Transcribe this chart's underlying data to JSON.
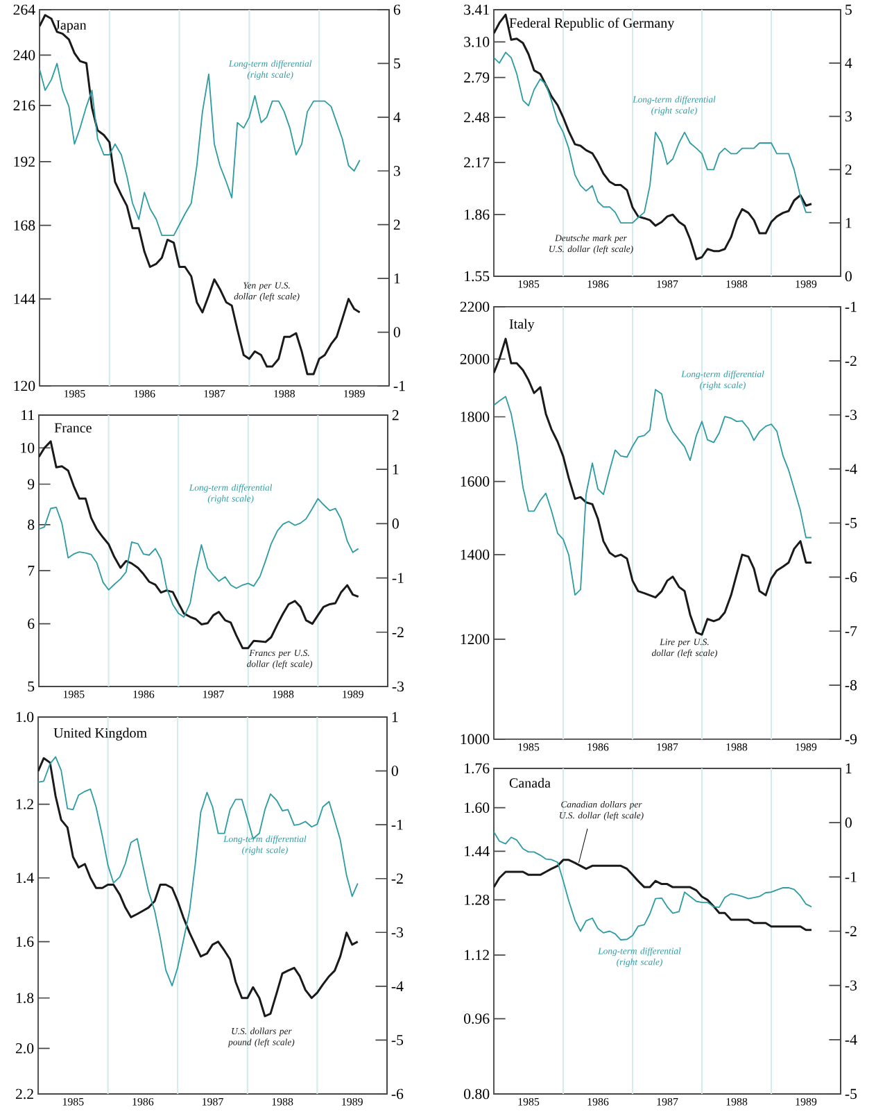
{
  "chart_data": [
    {
      "type": "line",
      "title": "Japan",
      "log": "y",
      "x": [
        "1985-01",
        "1985-02",
        "1985-03",
        "1985-04",
        "1985-05",
        "1985-06",
        "1985-07",
        "1985-08",
        "1985-09",
        "1985-10",
        "1985-11",
        "1985-12",
        "1986-01",
        "1986-02",
        "1986-03",
        "1986-04",
        "1986-05",
        "1986-06",
        "1986-07",
        "1986-08",
        "1986-09",
        "1986-10",
        "1986-11",
        "1986-12",
        "1987-01",
        "1987-02",
        "1987-03",
        "1987-04",
        "1987-05",
        "1987-06",
        "1987-07",
        "1987-08",
        "1987-09",
        "1987-10",
        "1987-11",
        "1987-12",
        "1988-01",
        "1988-02",
        "1988-03",
        "1988-04",
        "1988-05",
        "1988-06",
        "1988-07",
        "1988-08",
        "1988-09",
        "1988-10",
        "1988-11",
        "1988-12",
        "1989-01",
        "1989-02",
        "1989-03",
        "1989-04",
        "1989-05",
        "1989-06",
        "1989-07",
        "1989-08"
      ],
      "xlim": [
        "1985-01",
        "1990-01"
      ],
      "xticks": [
        {
          "value": "1985-07",
          "label": "1985"
        },
        {
          "value": "1986-07",
          "label": "1986"
        },
        {
          "value": "1987-07",
          "label": "1987"
        },
        {
          "value": "1988-07",
          "label": "1988"
        },
        {
          "value": "1989-07",
          "label": "1989"
        }
      ],
      "ylim": [
        120,
        264
      ],
      "yticks": [
        120,
        144,
        168,
        192,
        216,
        240,
        264
      ],
      "y2lim": [
        -1,
        6
      ],
      "y2ticks": [
        -1,
        0,
        1,
        2,
        3,
        4,
        5,
        6
      ],
      "ref_lines": [
        {
          "axis": "x",
          "value": "1986-01",
          "color": "#d3ebec"
        },
        {
          "axis": "x",
          "value": "1987-01",
          "color": "#d3ebec"
        },
        {
          "axis": "x",
          "value": "1988-01",
          "color": "#d3ebec"
        },
        {
          "axis": "x",
          "value": "1989-01",
          "color": "#d3ebec"
        }
      ],
      "series": [
        {
          "name": "Yen per U.S. dollar (left scale)",
          "color": "#1a1a1a",
          "values": [
            255,
            261,
            259,
            252,
            251,
            248,
            241,
            237,
            236,
            215,
            205,
            203,
            200,
            184,
            179,
            175,
            167,
            167,
            159,
            154,
            155,
            157,
            163,
            162,
            154,
            154,
            151,
            143,
            140,
            145,
            150,
            147,
            143,
            142,
            135,
            128,
            127,
            129,
            128,
            125,
            125,
            127,
            133,
            133,
            134,
            129,
            123,
            123,
            127,
            128,
            131,
            133,
            138,
            144,
            141,
            140
          ]
        },
        {
          "name": "Long-term differential (right scale)",
          "color": "#2e9ca3",
          "axis": "y2",
          "values": [
            4.9,
            4.5,
            4.7,
            5.0,
            4.5,
            4.2,
            3.5,
            3.8,
            4.2,
            4.5,
            3.6,
            3.3,
            3.3,
            3.5,
            3.3,
            2.9,
            2.4,
            2.1,
            2.6,
            2.3,
            2.1,
            1.8,
            1.8,
            1.8,
            2.0,
            2.2,
            2.4,
            3.1,
            4.1,
            4.8,
            3.5,
            3.1,
            2.8,
            2.5,
            3.9,
            3.8,
            4.0,
            4.4,
            3.9,
            4.0,
            4.3,
            4.3,
            4.1,
            3.8,
            3.3,
            3.5,
            4.1,
            4.3,
            4.3,
            4.3,
            4.2,
            3.9,
            3.6,
            3.1,
            3.0,
            3.2
          ]
        }
      ]
    },
    {
      "type": "line",
      "title": "Federal Republic of Germany",
      "log": "y",
      "x": [
        "1985-01",
        "1985-02",
        "1985-03",
        "1985-04",
        "1985-05",
        "1985-06",
        "1985-07",
        "1985-08",
        "1985-09",
        "1985-10",
        "1985-11",
        "1985-12",
        "1986-01",
        "1986-02",
        "1986-03",
        "1986-04",
        "1986-05",
        "1986-06",
        "1986-07",
        "1986-08",
        "1986-09",
        "1986-10",
        "1986-11",
        "1986-12",
        "1987-01",
        "1987-02",
        "1987-03",
        "1987-04",
        "1987-05",
        "1987-06",
        "1987-07",
        "1987-08",
        "1987-09",
        "1987-10",
        "1987-11",
        "1987-12",
        "1988-01",
        "1988-02",
        "1988-03",
        "1988-04",
        "1988-05",
        "1988-06",
        "1988-07",
        "1988-08",
        "1988-09",
        "1988-10",
        "1988-11",
        "1988-12",
        "1989-01",
        "1989-02",
        "1989-03",
        "1989-04",
        "1989-05",
        "1989-06",
        "1989-07",
        "1989-08"
      ],
      "xlim": [
        "1985-01",
        "1990-01"
      ],
      "xticks": [
        {
          "value": "1985-07",
          "label": "1985"
        },
        {
          "value": "1986-07",
          "label": "1986"
        },
        {
          "value": "1987-07",
          "label": "1987"
        },
        {
          "value": "1988-07",
          "label": "1988"
        },
        {
          "value": "1989-07",
          "label": "1989"
        }
      ],
      "ylim": [
        1.55,
        3.41
      ],
      "yticks": [
        1.55,
        1.86,
        2.17,
        2.48,
        2.79,
        {
          "value": 3.1,
          "label": "3.10"
        },
        3.41
      ],
      "y2lim": [
        0,
        5
      ],
      "y2ticks": [
        0,
        1,
        2,
        3,
        4,
        5
      ],
      "ref_lines": [
        {
          "axis": "x",
          "value": "1986-01",
          "color": "#d3ebec"
        },
        {
          "axis": "x",
          "value": "1987-01",
          "color": "#d3ebec"
        },
        {
          "axis": "x",
          "value": "1988-01",
          "color": "#d3ebec"
        },
        {
          "axis": "x",
          "value": "1989-01",
          "color": "#d3ebec"
        }
      ],
      "series": [
        {
          "name": "Deutsche mark per U.S. dollar (left scale)",
          "color": "#1a1a1a",
          "values": [
            3.18,
            3.28,
            3.36,
            3.12,
            3.13,
            3.09,
            2.99,
            2.85,
            2.82,
            2.73,
            2.64,
            2.57,
            2.48,
            2.38,
            2.29,
            2.28,
            2.25,
            2.23,
            2.17,
            2.1,
            2.05,
            2.03,
            2.03,
            2.0,
            1.9,
            1.85,
            1.84,
            1.83,
            1.8,
            1.82,
            1.85,
            1.86,
            1.82,
            1.8,
            1.73,
            1.63,
            1.64,
            1.68,
            1.67,
            1.67,
            1.68,
            1.74,
            1.83,
            1.89,
            1.87,
            1.83,
            1.76,
            1.76,
            1.82,
            1.85,
            1.87,
            1.88,
            1.94,
            1.97,
            1.91,
            1.92
          ]
        },
        {
          "name": "Long-term differential (right scale)",
          "color": "#2e9ca3",
          "axis": "y2",
          "values": [
            4.1,
            4.0,
            4.2,
            4.1,
            3.8,
            3.3,
            3.2,
            3.5,
            3.7,
            3.6,
            3.3,
            2.9,
            2.7,
            2.4,
            1.9,
            1.7,
            1.6,
            1.7,
            1.4,
            1.3,
            1.3,
            1.2,
            1.0,
            1.0,
            1.0,
            1.1,
            1.2,
            1.7,
            2.7,
            2.5,
            2.1,
            2.2,
            2.5,
            2.7,
            2.5,
            2.4,
            2.3,
            2.0,
            2.0,
            2.3,
            2.4,
            2.3,
            2.3,
            2.4,
            2.4,
            2.4,
            2.5,
            2.5,
            2.5,
            2.3,
            2.3,
            2.3,
            2.0,
            1.5,
            1.2,
            1.2
          ]
        }
      ]
    },
    {
      "type": "line",
      "title": "France",
      "log": "y",
      "x": [
        "1985-01",
        "1985-02",
        "1985-03",
        "1985-04",
        "1985-05",
        "1985-06",
        "1985-07",
        "1985-08",
        "1985-09",
        "1985-10",
        "1985-11",
        "1985-12",
        "1986-01",
        "1986-02",
        "1986-03",
        "1986-04",
        "1986-05",
        "1986-06",
        "1986-07",
        "1986-08",
        "1986-09",
        "1986-10",
        "1986-11",
        "1986-12",
        "1987-01",
        "1987-02",
        "1987-03",
        "1987-04",
        "1987-05",
        "1987-06",
        "1987-07",
        "1987-08",
        "1987-09",
        "1987-10",
        "1987-11",
        "1987-12",
        "1988-01",
        "1988-02",
        "1988-03",
        "1988-04",
        "1988-05",
        "1988-06",
        "1988-07",
        "1988-08",
        "1988-09",
        "1988-10",
        "1988-11",
        "1988-12",
        "1989-01",
        "1989-02",
        "1989-03",
        "1989-04",
        "1989-05",
        "1989-06",
        "1989-07",
        "1989-08"
      ],
      "xlim": [
        "1985-01",
        "1990-01"
      ],
      "xticks": [
        {
          "value": "1985-07",
          "label": "1985"
        },
        {
          "value": "1986-07",
          "label": "1986"
        },
        {
          "value": "1987-07",
          "label": "1987"
        },
        {
          "value": "1988-07",
          "label": "1988"
        },
        {
          "value": "1989-07",
          "label": "1989"
        }
      ],
      "ylim": [
        5,
        11
      ],
      "yticks": [
        5,
        6,
        7,
        8,
        9,
        10,
        11
      ],
      "y2lim": [
        -3,
        2
      ],
      "y2ticks": [
        -3,
        -2,
        -1,
        0,
        1,
        2
      ],
      "ref_lines": [
        {
          "axis": "x",
          "value": "1986-01",
          "color": "#d3ebec"
        },
        {
          "axis": "x",
          "value": "1987-01",
          "color": "#d3ebec"
        },
        {
          "axis": "x",
          "value": "1988-01",
          "color": "#d3ebec"
        },
        {
          "axis": "x",
          "value": "1989-01",
          "color": "#d3ebec"
        }
      ],
      "series": [
        {
          "name": "Francs per U.S. dollar (left scale)",
          "color": "#1a1a1a",
          "values": [
            9.74,
            10.0,
            10.19,
            9.45,
            9.48,
            9.36,
            8.95,
            8.63,
            8.63,
            8.16,
            7.9,
            7.71,
            7.56,
            7.29,
            7.06,
            7.2,
            7.15,
            7.06,
            6.93,
            6.78,
            6.72,
            6.57,
            6.61,
            6.58,
            6.37,
            6.18,
            6.12,
            6.08,
            5.99,
            6.01,
            6.15,
            6.21,
            6.06,
            6.02,
            5.8,
            5.59,
            5.59,
            5.71,
            5.7,
            5.69,
            5.77,
            5.99,
            6.18,
            6.35,
            6.41,
            6.3,
            6.06,
            6.0,
            6.15,
            6.3,
            6.35,
            6.37,
            6.57,
            6.71,
            6.53,
            6.49
          ]
        },
        {
          "name": "Long-term differential (right scale)",
          "color": "#2e9ca3",
          "axis": "y2",
          "values": [
            -0.1,
            -0.06,
            0.28,
            0.3,
            0.01,
            -0.63,
            -0.56,
            -0.52,
            -0.54,
            -0.57,
            -0.72,
            -1.08,
            -1.22,
            -1.12,
            -1.02,
            -0.89,
            -0.34,
            -0.37,
            -0.56,
            -0.58,
            -0.46,
            -0.65,
            -1.18,
            -1.49,
            -1.65,
            -1.72,
            -1.46,
            -0.87,
            -0.39,
            -0.82,
            -0.95,
            -1.06,
            -0.98,
            -1.13,
            -1.19,
            -1.13,
            -1.1,
            -1.15,
            -0.97,
            -0.68,
            -0.37,
            -0.13,
            -0.01,
            0.04,
            -0.03,
            0.01,
            0.09,
            0.28,
            0.46,
            0.35,
            0.24,
            0.28,
            0.09,
            -0.32,
            -0.53,
            -0.46
          ]
        }
      ]
    },
    {
      "type": "line",
      "title": "Italy",
      "log": "y",
      "x": [
        "1985-01",
        "1985-02",
        "1985-03",
        "1985-04",
        "1985-05",
        "1985-06",
        "1985-07",
        "1985-08",
        "1985-09",
        "1985-10",
        "1985-11",
        "1985-12",
        "1986-01",
        "1986-02",
        "1986-03",
        "1986-04",
        "1986-05",
        "1986-06",
        "1986-07",
        "1986-08",
        "1986-09",
        "1986-10",
        "1986-11",
        "1986-12",
        "1987-01",
        "1987-02",
        "1987-03",
        "1987-04",
        "1987-05",
        "1987-06",
        "1987-07",
        "1987-08",
        "1987-09",
        "1987-10",
        "1987-11",
        "1987-12",
        "1988-01",
        "1988-02",
        "1988-03",
        "1988-04",
        "1988-05",
        "1988-06",
        "1988-07",
        "1988-08",
        "1988-09",
        "1988-10",
        "1988-11",
        "1988-12",
        "1989-01",
        "1989-02",
        "1989-03",
        "1989-04",
        "1989-05",
        "1989-06",
        "1989-07",
        "1989-08"
      ],
      "xlim": [
        "1985-01",
        "1990-01"
      ],
      "xticks": [
        {
          "value": "1985-07",
          "label": "1985"
        },
        {
          "value": "1986-07",
          "label": "1986"
        },
        {
          "value": "1987-07",
          "label": "1987"
        },
        {
          "value": "1988-07",
          "label": "1988"
        },
        {
          "value": "1989-07",
          "label": "1989"
        }
      ],
      "ylim": [
        1000,
        2200
      ],
      "yticks": [
        1000,
        1200,
        1400,
        1600,
        1800,
        2000,
        2200
      ],
      "y2lim": [
        -9,
        -1
      ],
      "y2ticks": [
        -9,
        -8,
        -7,
        -6,
        -5,
        -4,
        -3,
        -2,
        -1
      ],
      "ref_lines": [
        {
          "axis": "x",
          "value": "1986-01",
          "color": "#d3ebec"
        },
        {
          "axis": "x",
          "value": "1987-01",
          "color": "#d3ebec"
        },
        {
          "axis": "x",
          "value": "1988-01",
          "color": "#d3ebec"
        },
        {
          "axis": "x",
          "value": "1989-01",
          "color": "#d3ebec"
        }
      ],
      "series": [
        {
          "name": "Lire per U.S. dollar (left scale)",
          "color": "#1a1a1a",
          "values": [
            1950,
            2000,
            2075,
            1985,
            1985,
            1960,
            1925,
            1880,
            1900,
            1810,
            1760,
            1720,
            1675,
            1610,
            1550,
            1555,
            1540,
            1535,
            1495,
            1435,
            1405,
            1395,
            1400,
            1390,
            1335,
            1310,
            1305,
            1300,
            1295,
            1310,
            1335,
            1345,
            1320,
            1310,
            1255,
            1215,
            1210,
            1245,
            1240,
            1245,
            1260,
            1300,
            1350,
            1400,
            1395,
            1365,
            1310,
            1300,
            1340,
            1360,
            1370,
            1380,
            1415,
            1435,
            1380,
            1380
          ]
        },
        {
          "name": "Long-term differential (right scale)",
          "color": "#2e9ca3",
          "axis": "y2",
          "values": [
            -2.82,
            -2.74,
            -2.66,
            -2.98,
            -3.52,
            -4.34,
            -4.78,
            -4.78,
            -4.58,
            -4.45,
            -4.77,
            -5.19,
            -5.3,
            -5.59,
            -6.33,
            -6.23,
            -4.47,
            -3.89,
            -4.37,
            -4.47,
            -4.02,
            -3.65,
            -3.76,
            -3.78,
            -3.58,
            -3.41,
            -3.38,
            -3.28,
            -2.53,
            -2.61,
            -3.09,
            -3.31,
            -3.46,
            -3.59,
            -3.84,
            -3.38,
            -3.12,
            -3.46,
            -3.51,
            -3.33,
            -3.03,
            -3.06,
            -3.12,
            -3.11,
            -3.25,
            -3.47,
            -3.31,
            -3.21,
            -3.17,
            -3.3,
            -3.76,
            -4.02,
            -4.37,
            -4.77,
            -5.27,
            -5.27
          ]
        }
      ]
    },
    {
      "type": "line",
      "title": "United Kingdom",
      "log": "y",
      "x": [
        "1985-01",
        "1985-02",
        "1985-03",
        "1985-04",
        "1985-05",
        "1985-06",
        "1985-07",
        "1985-08",
        "1985-09",
        "1985-10",
        "1985-11",
        "1985-12",
        "1986-01",
        "1986-02",
        "1986-03",
        "1986-04",
        "1986-05",
        "1986-06",
        "1986-07",
        "1986-08",
        "1986-09",
        "1986-10",
        "1986-11",
        "1986-12",
        "1987-01",
        "1987-02",
        "1987-03",
        "1987-04",
        "1987-05",
        "1987-06",
        "1987-07",
        "1987-08",
        "1987-09",
        "1987-10",
        "1987-11",
        "1987-12",
        "1988-01",
        "1988-02",
        "1988-03",
        "1988-04",
        "1988-05",
        "1988-06",
        "1988-07",
        "1988-08",
        "1988-09",
        "1988-10",
        "1988-11",
        "1988-12",
        "1989-01",
        "1989-02",
        "1989-03",
        "1989-04",
        "1989-05",
        "1989-06",
        "1989-07",
        "1989-08"
      ],
      "xlim": [
        "1985-01",
        "1990-01"
      ],
      "xticks": [
        {
          "value": "1985-07",
          "label": "1985"
        },
        {
          "value": "1986-07",
          "label": "1986"
        },
        {
          "value": "1987-07",
          "label": "1987"
        },
        {
          "value": "1988-07",
          "label": "1988"
        },
        {
          "value": "1989-07",
          "label": "1989"
        }
      ],
      "ylim": [
        2.2,
        1.0
      ],
      "yticks": [
        {
          "value": 1.0,
          "label": "1.0"
        },
        1.2,
        1.4,
        1.6,
        1.8,
        {
          "value": 2.0,
          "label": "2.0"
        },
        2.2
      ],
      "y2lim": [
        -6,
        1
      ],
      "y2ticks": [
        -6,
        -5,
        -4,
        -3,
        -2,
        -1,
        0,
        1
      ],
      "ref_lines": [
        {
          "axis": "x",
          "value": "1986-01",
          "color": "#d3ebec"
        },
        {
          "axis": "x",
          "value": "1987-01",
          "color": "#d3ebec"
        },
        {
          "axis": "x",
          "value": "1988-01",
          "color": "#d3ebec"
        },
        {
          "axis": "x",
          "value": "1989-01",
          "color": "#d3ebec"
        }
      ],
      "series": [
        {
          "name": "U.S. dollars per pound (left scale)",
          "color": "#1a1a1a",
          "values": [
            1.12,
            1.09,
            1.1,
            1.18,
            1.24,
            1.26,
            1.34,
            1.37,
            1.36,
            1.4,
            1.43,
            1.43,
            1.42,
            1.42,
            1.45,
            1.49,
            1.52,
            1.51,
            1.5,
            1.49,
            1.47,
            1.42,
            1.42,
            1.43,
            1.47,
            1.52,
            1.57,
            1.61,
            1.65,
            1.64,
            1.61,
            1.6,
            1.63,
            1.66,
            1.74,
            1.8,
            1.8,
            1.76,
            1.8,
            1.87,
            1.86,
            1.78,
            1.71,
            1.7,
            1.69,
            1.72,
            1.77,
            1.8,
            1.78,
            1.75,
            1.72,
            1.7,
            1.65,
            1.57,
            1.61,
            1.6
          ]
        },
        {
          "name": "Long-term differential (right scale)",
          "color": "#2e9ca3",
          "axis": "y2",
          "values": [
            -0.21,
            -0.19,
            0.13,
            0.26,
            0.01,
            -0.7,
            -0.72,
            -0.45,
            -0.38,
            -0.34,
            -0.67,
            -1.21,
            -1.75,
            -2.08,
            -1.97,
            -1.72,
            -1.33,
            -1.26,
            -1.75,
            -2.23,
            -2.6,
            -3.11,
            -3.7,
            -3.99,
            -3.65,
            -3.16,
            -2.6,
            -1.75,
            -0.77,
            -0.4,
            -0.67,
            -1.16,
            -1.16,
            -0.72,
            -0.53,
            -0.53,
            -0.89,
            -1.26,
            -1.16,
            -0.72,
            -0.43,
            -0.55,
            -0.74,
            -0.72,
            -1.01,
            -0.99,
            -0.94,
            -1.04,
            -0.99,
            -0.67,
            -0.57,
            -0.92,
            -1.28,
            -1.94,
            -2.33,
            -2.09
          ]
        }
      ]
    },
    {
      "type": "line",
      "title": "Canada",
      "log": "y",
      "x": [
        "1985-01",
        "1985-02",
        "1985-03",
        "1985-04",
        "1985-05",
        "1985-06",
        "1985-07",
        "1985-08",
        "1985-09",
        "1985-10",
        "1985-11",
        "1985-12",
        "1986-01",
        "1986-02",
        "1986-03",
        "1986-04",
        "1986-05",
        "1986-06",
        "1986-07",
        "1986-08",
        "1986-09",
        "1986-10",
        "1986-11",
        "1986-12",
        "1987-01",
        "1987-02",
        "1987-03",
        "1987-04",
        "1987-05",
        "1987-06",
        "1987-07",
        "1987-08",
        "1987-09",
        "1987-10",
        "1987-11",
        "1987-12",
        "1988-01",
        "1988-02",
        "1988-03",
        "1988-04",
        "1988-05",
        "1988-06",
        "1988-07",
        "1988-08",
        "1988-09",
        "1988-10",
        "1988-11",
        "1988-12",
        "1989-01",
        "1989-02",
        "1989-03",
        "1989-04",
        "1989-05",
        "1989-06",
        "1989-07",
        "1989-08"
      ],
      "xlim": [
        "1985-01",
        "1990-01"
      ],
      "xticks": [
        {
          "value": "1985-07",
          "label": "1985"
        },
        {
          "value": "1986-07",
          "label": "1986"
        },
        {
          "value": "1987-07",
          "label": "1987"
        },
        {
          "value": "1988-07",
          "label": "1988"
        },
        {
          "value": "1989-07",
          "label": "1989"
        }
      ],
      "ylim": [
        0.8,
        1.76
      ],
      "yticks": [
        {
          "value": 0.8,
          "label": "0.80"
        },
        0.96,
        1.12,
        1.28,
        1.44,
        {
          "value": 1.6,
          "label": "1.60"
        },
        1.76
      ],
      "y2lim": [
        -5,
        1
      ],
      "y2ticks": [
        -5,
        -4,
        -3,
        -2,
        -1,
        0,
        1
      ],
      "ref_lines": [
        {
          "axis": "x",
          "value": "1986-01",
          "color": "#d3ebec"
        },
        {
          "axis": "x",
          "value": "1987-01",
          "color": "#d3ebec"
        },
        {
          "axis": "x",
          "value": "1988-01",
          "color": "#d3ebec"
        },
        {
          "axis": "x",
          "value": "1989-01",
          "color": "#d3ebec"
        }
      ],
      "series": [
        {
          "name": "Canadian dollars per U.S. dollar (left scale)",
          "color": "#1a1a1a",
          "values": [
            1.32,
            1.35,
            1.37,
            1.37,
            1.37,
            1.37,
            1.36,
            1.36,
            1.36,
            1.37,
            1.38,
            1.39,
            1.41,
            1.41,
            1.4,
            1.39,
            1.38,
            1.39,
            1.39,
            1.39,
            1.39,
            1.39,
            1.39,
            1.38,
            1.36,
            1.34,
            1.32,
            1.32,
            1.34,
            1.33,
            1.33,
            1.32,
            1.32,
            1.32,
            1.32,
            1.31,
            1.29,
            1.28,
            1.26,
            1.24,
            1.24,
            1.22,
            1.22,
            1.22,
            1.22,
            1.21,
            1.21,
            1.21,
            1.2,
            1.2,
            1.2,
            1.2,
            1.2,
            1.2,
            1.19,
            1.19
          ]
        },
        {
          "name": "Long-term differential (right scale)",
          "color": "#2e9ca3",
          "axis": "y2",
          "values": [
            -0.17,
            -0.34,
            -0.39,
            -0.27,
            -0.32,
            -0.48,
            -0.54,
            -0.54,
            -0.6,
            -0.67,
            -0.68,
            -0.73,
            -1.07,
            -1.44,
            -1.8,
            -2.0,
            -1.81,
            -1.76,
            -1.95,
            -2.03,
            -2.0,
            -2.05,
            -2.16,
            -2.15,
            -2.08,
            -1.91,
            -1.88,
            -1.68,
            -1.4,
            -1.39,
            -1.55,
            -1.67,
            -1.64,
            -1.28,
            -1.36,
            -1.45,
            -1.47,
            -1.47,
            -1.55,
            -1.56,
            -1.38,
            -1.31,
            -1.33,
            -1.36,
            -1.4,
            -1.38,
            -1.36,
            -1.29,
            -1.28,
            -1.24,
            -1.2,
            -1.2,
            -1.23,
            -1.35,
            -1.5,
            -1.55
          ]
        }
      ]
    }
  ]
}
